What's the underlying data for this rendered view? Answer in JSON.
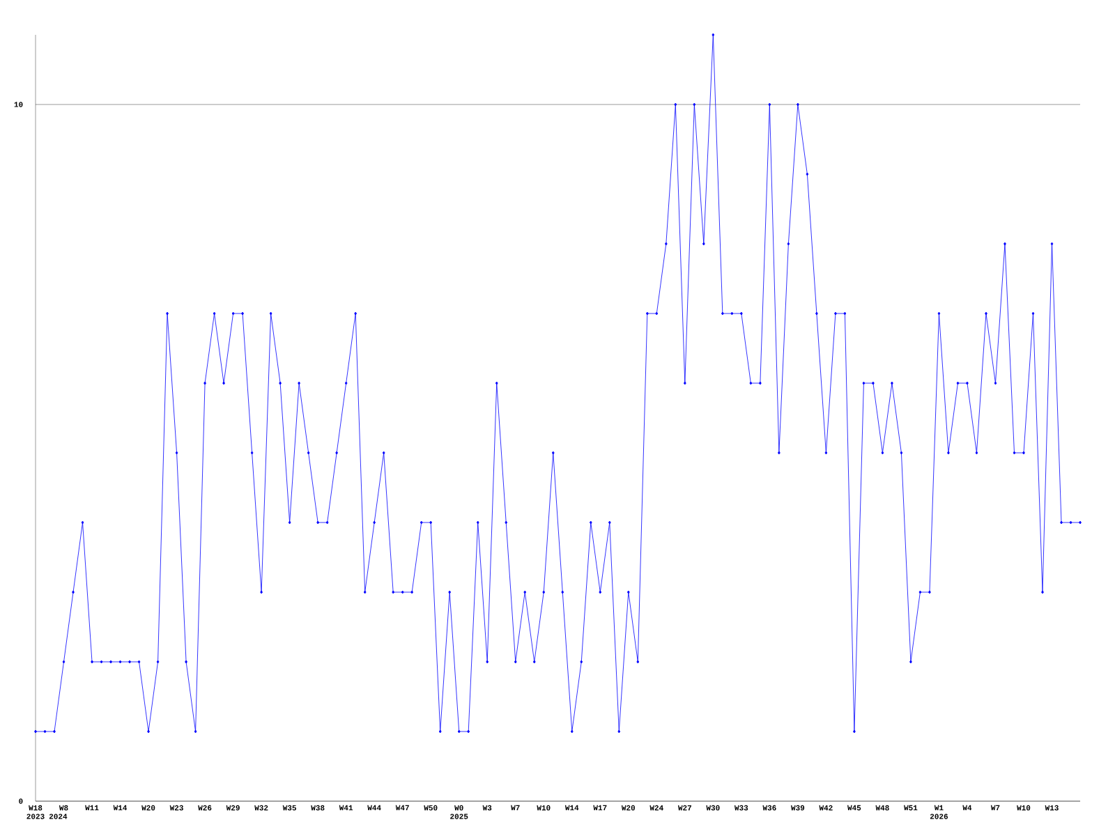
{
  "chart_data": {
    "type": "line",
    "categories": [
      "W18",
      null,
      null,
      "W8",
      null,
      null,
      "W11",
      null,
      null,
      "W14",
      null,
      null,
      "W20",
      null,
      null,
      "W23",
      null,
      null,
      "W26",
      null,
      null,
      "W29",
      null,
      null,
      "W32",
      null,
      null,
      "W35",
      null,
      null,
      "W38",
      null,
      null,
      "W41",
      null,
      null,
      "W44",
      null,
      null,
      "W47",
      null,
      null,
      "W50",
      null,
      null,
      "W0",
      null,
      null,
      "W3",
      null,
      null,
      "W7",
      null,
      null,
      "W10",
      null,
      null,
      "W14",
      null,
      null,
      "W17",
      null,
      null,
      "W20",
      null,
      null,
      "W24",
      null,
      null,
      "W27",
      null,
      null,
      "W30",
      null,
      null,
      "W33",
      null,
      null,
      "W36",
      null,
      null,
      "W39",
      null,
      null,
      "W42",
      null,
      null,
      "W45",
      null,
      null,
      "W48",
      null,
      null,
      "W51",
      null,
      null,
      "W1",
      null,
      null,
      "W4",
      null,
      null,
      "W7",
      null,
      null,
      "W10",
      null,
      null,
      "W13",
      null,
      null,
      null
    ],
    "values": [
      1,
      1,
      1,
      2,
      3,
      4,
      2,
      2,
      2,
      2,
      2,
      2,
      1,
      2,
      7,
      5,
      2,
      1,
      6,
      7,
      6,
      7,
      7,
      5,
      3,
      7,
      6,
      4,
      6,
      5,
      4,
      4,
      5,
      6,
      7,
      3,
      4,
      5,
      3,
      3,
      3,
      4,
      4,
      1,
      3,
      1,
      1,
      4,
      2,
      6,
      4,
      2,
      3,
      2,
      3,
      5,
      3,
      1,
      2,
      4,
      3,
      4,
      1,
      3,
      2,
      7,
      7,
      8,
      10,
      6,
      10,
      8,
      11,
      7,
      7,
      7,
      6,
      6,
      10,
      5,
      8,
      10,
      9,
      7,
      5,
      7,
      7,
      1,
      6,
      6,
      5,
      6,
      5,
      2,
      3,
      3,
      7,
      5,
      6,
      6,
      5,
      7,
      6,
      8,
      5,
      5,
      7,
      3,
      8,
      4,
      4,
      4
    ],
    "color": "#0000ff",
    "marker": "diamond",
    "line_style": "solid",
    "ylim": [
      0,
      11
    ],
    "yticks": [
      0,
      10
    ],
    "grid": "y",
    "annotations": [
      "2023",
      "2024",
      "2025",
      "2026"
    ]
  }
}
